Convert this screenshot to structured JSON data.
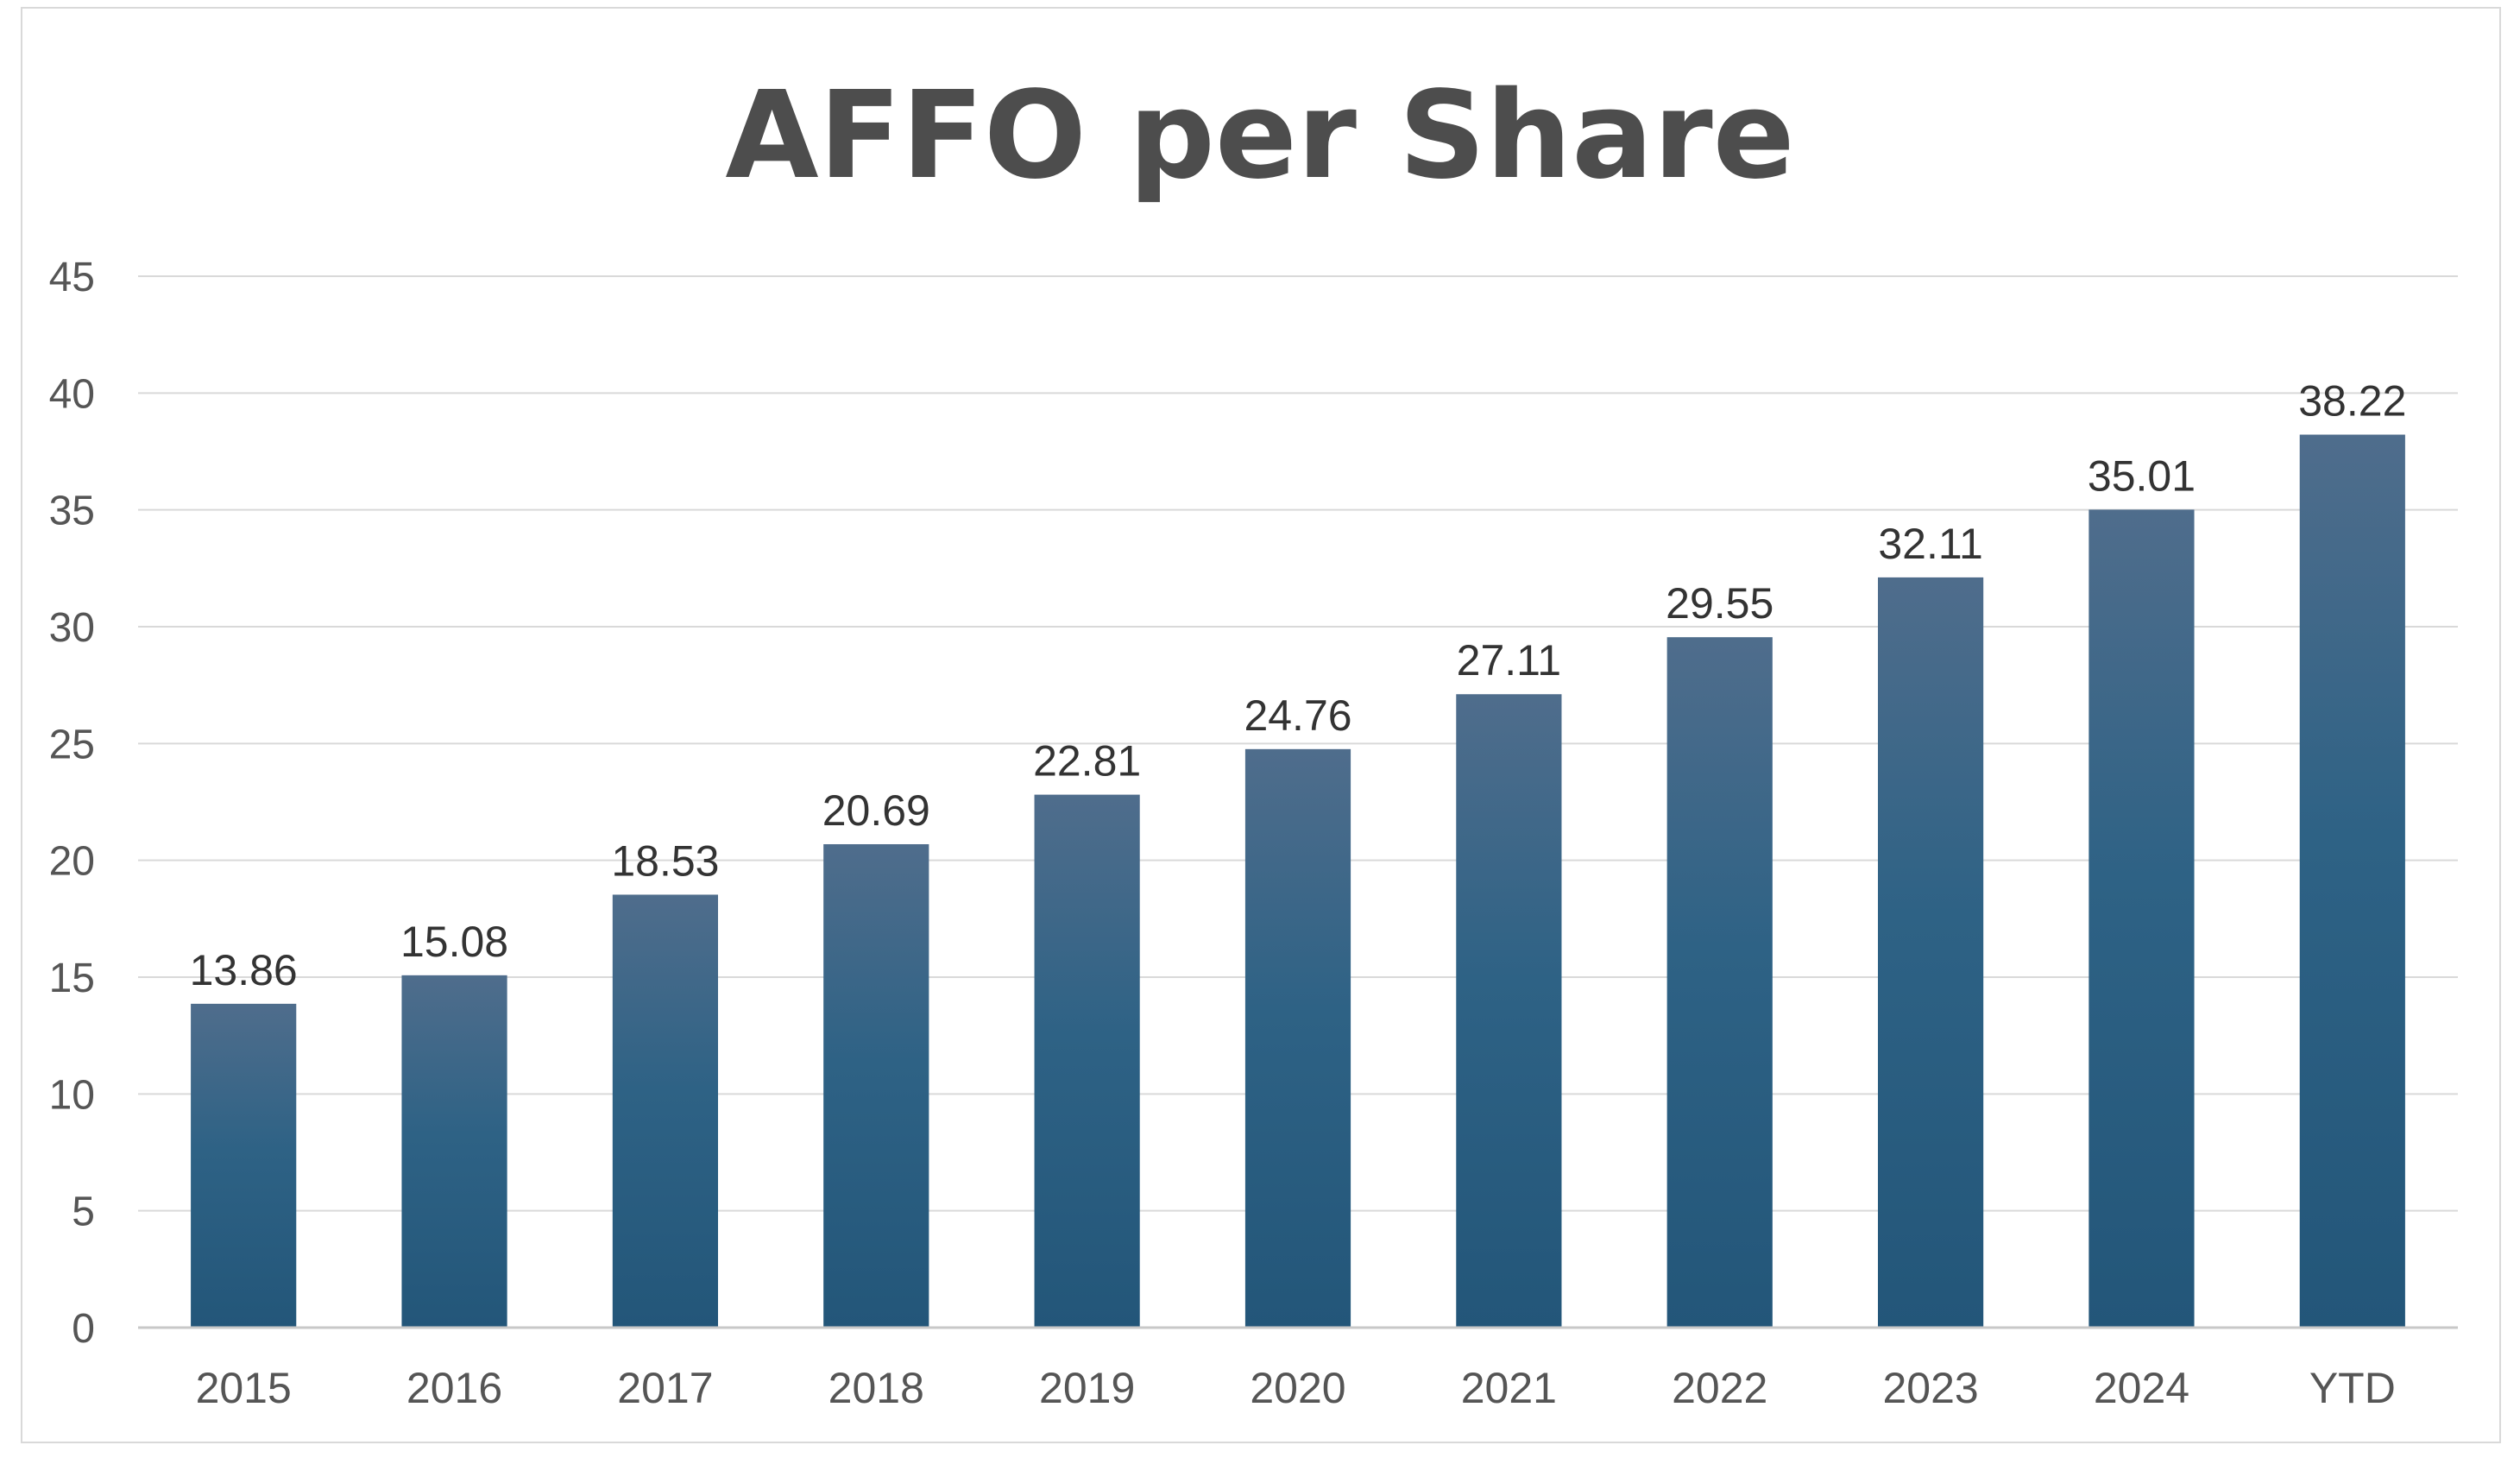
{
  "chart_data": {
    "type": "bar",
    "title": "AFFO per Share",
    "xlabel": "",
    "ylabel": "",
    "categories": [
      "2015",
      "2016",
      "2017",
      "2018",
      "2019",
      "2020",
      "2021",
      "2022",
      "2023",
      "2024",
      "YTD"
    ],
    "values": [
      13.86,
      15.08,
      18.53,
      20.69,
      22.81,
      24.76,
      27.11,
      29.55,
      32.11,
      35.01,
      38.22
    ],
    "data_labels": [
      "13.86",
      "15.08",
      "18.53",
      "20.69",
      "22.81",
      "24.76",
      "27.11",
      "29.55",
      "32.11",
      "35.01",
      "38.22"
    ],
    "ylim": [
      0,
      45
    ],
    "y_ticks": [
      0,
      5,
      10,
      15,
      20,
      25,
      30,
      35,
      40,
      45
    ],
    "y_tick_labels": [
      "0",
      "5",
      "10",
      "15",
      "20",
      "25",
      "30",
      "35",
      "40",
      "45"
    ],
    "grid": true,
    "legend": "none",
    "colors": {
      "bar_top": "#4f6d8c",
      "bar_mid": "#2e6285",
      "bar_bottom": "#235679",
      "title": "#4d4d4d",
      "gridline": "#d9d9d9"
    }
  }
}
